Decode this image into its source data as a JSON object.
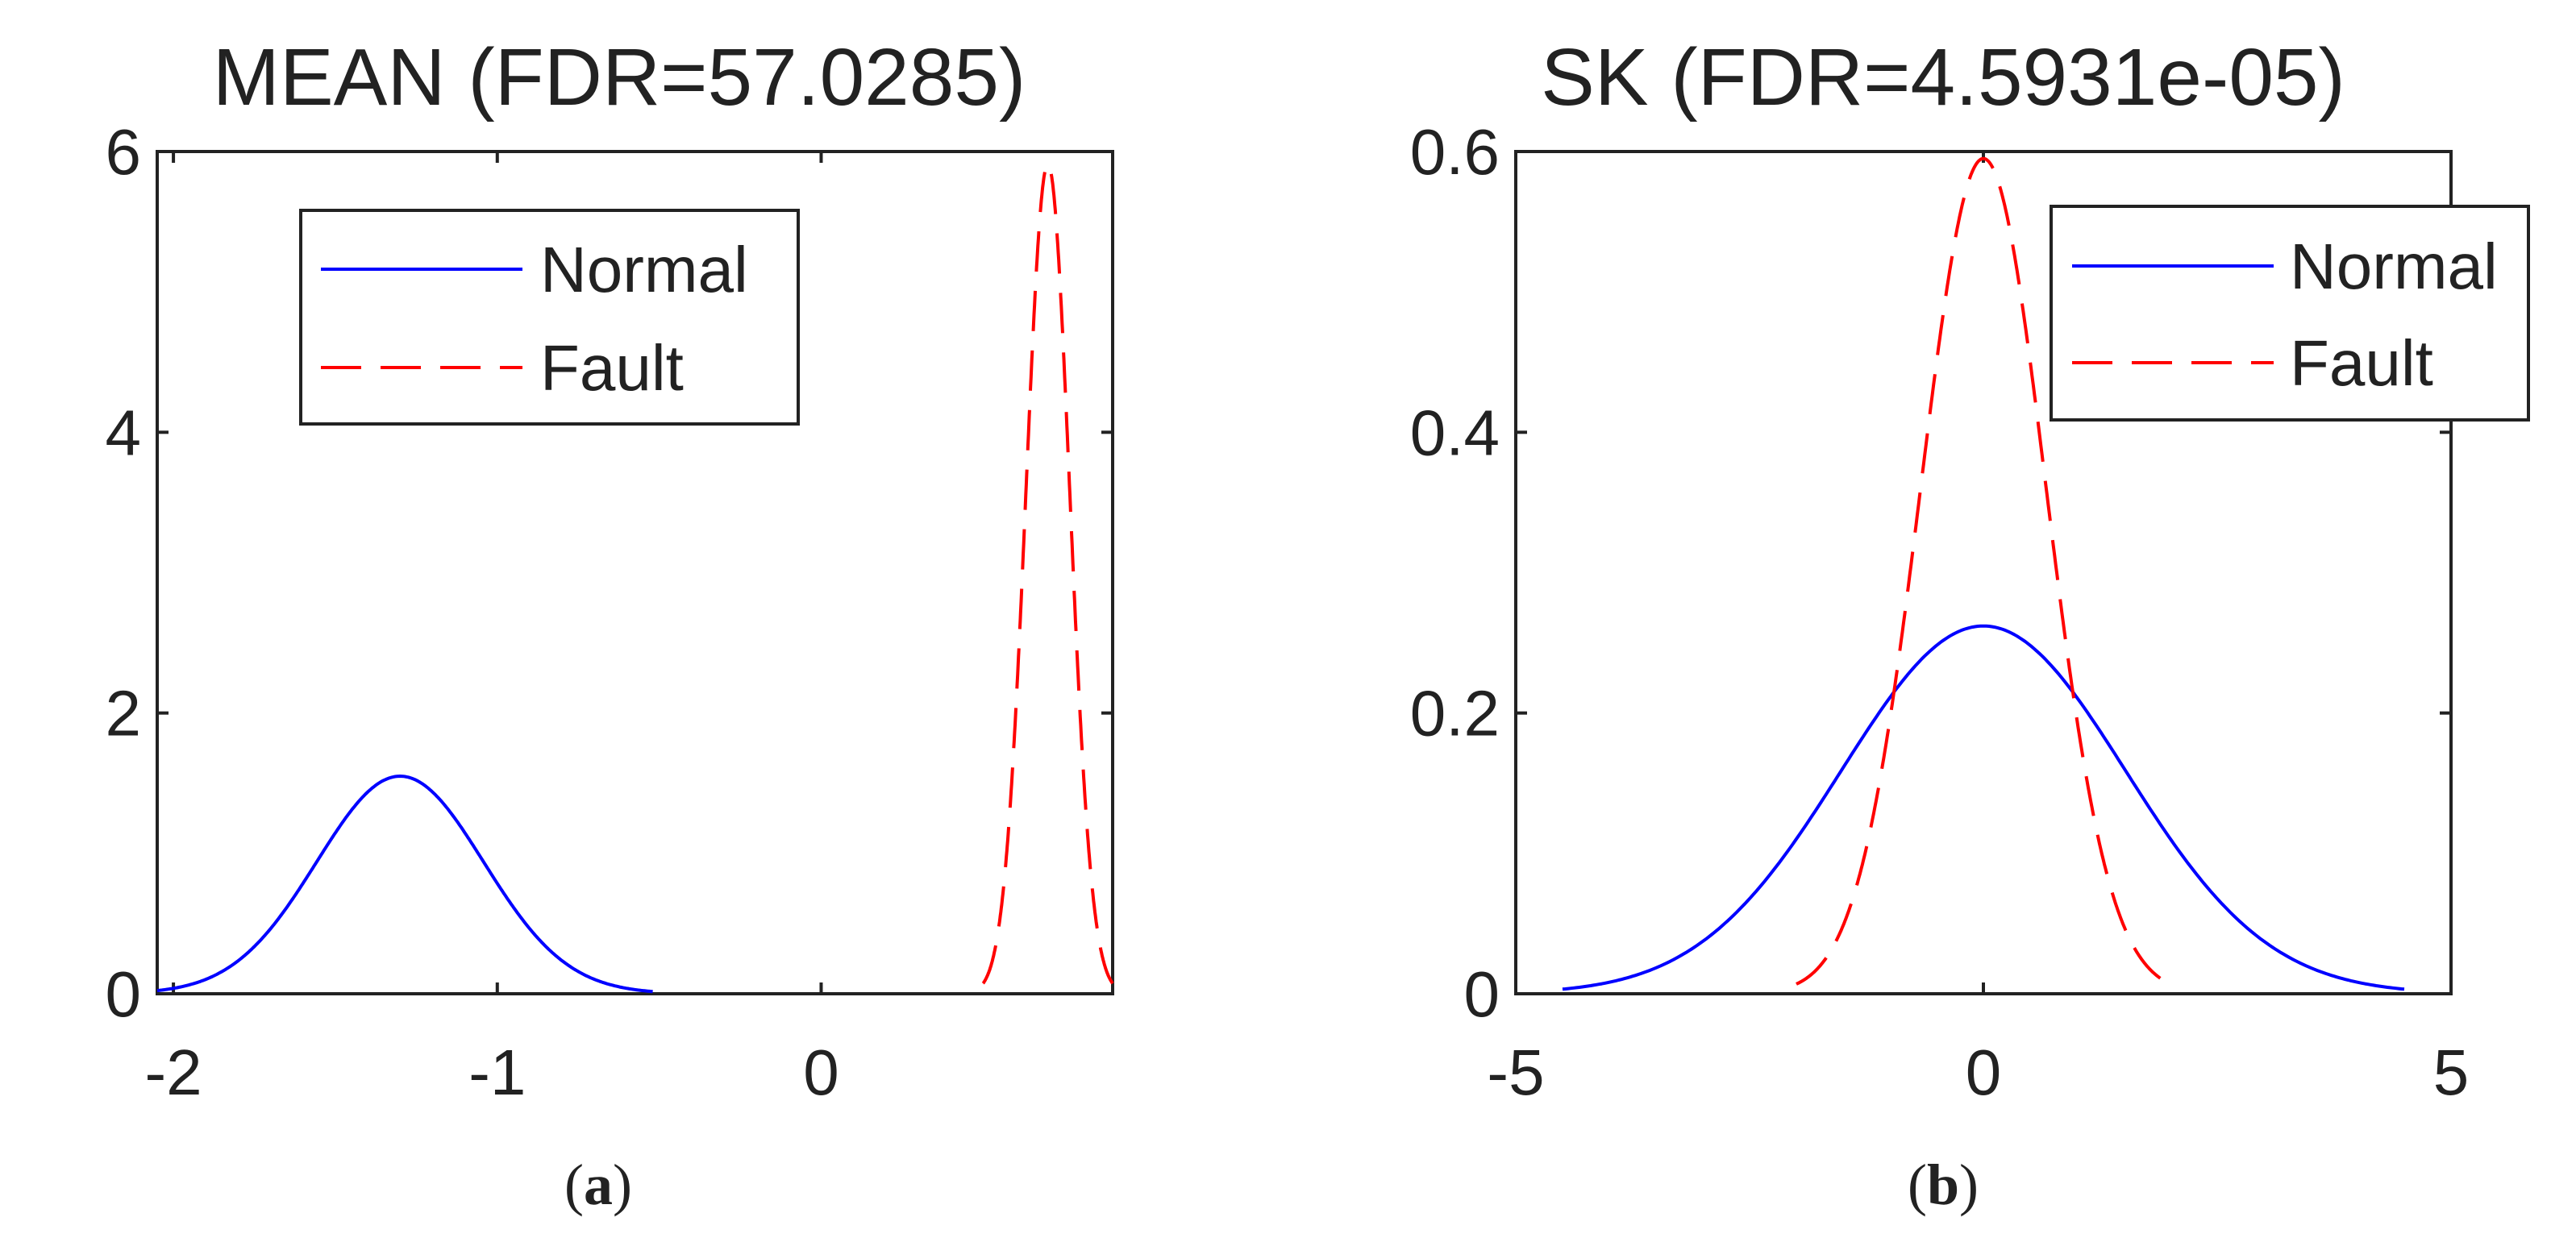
{
  "chart_data": [
    {
      "type": "line",
      "title": "MEAN (FDR=57.0285)",
      "caption": {
        "open": "(",
        "letter": "a",
        "close": ")"
      },
      "xlim": [
        -2.05,
        0.9
      ],
      "ylim": [
        0,
        6
      ],
      "xticks": [
        -2,
        -1,
        0
      ],
      "xtick_labels": [
        "-2",
        "-1",
        "0"
      ],
      "yticks": [
        0,
        2,
        4,
        6
      ],
      "ytick_labels": [
        "0",
        "2",
        "4",
        "6"
      ],
      "legend": {
        "position": "top-center",
        "entries": [
          "Normal",
          "Fault"
        ]
      },
      "series": [
        {
          "name": "Normal",
          "color": "#0000ff",
          "style": "solid",
          "distribution": "gaussian",
          "mu": -1.3,
          "sigma": 0.2575,
          "xrange": [
            -2.05,
            -0.52
          ],
          "peak": 1.55
        },
        {
          "name": "Fault",
          "color": "#ff0000",
          "style": "dashed",
          "distribution": "gaussian",
          "mu": 0.7,
          "sigma": 0.0675,
          "xrange": [
            0.5,
            0.9
          ],
          "peak": 5.91
        }
      ]
    },
    {
      "type": "line",
      "title": "SK (FDR=4.5931e-05)",
      "caption": {
        "open": "(",
        "letter": "b",
        "close": ")"
      },
      "xlim": [
        -5,
        5
      ],
      "ylim": [
        0,
        0.6
      ],
      "xticks": [
        -5,
        0,
        5
      ],
      "xtick_labels": [
        "-5",
        "0",
        "5"
      ],
      "yticks": [
        0,
        0.2,
        0.4,
        0.6
      ],
      "ytick_labels": [
        "0",
        "0.2",
        "0.4",
        "0.6"
      ],
      "legend": {
        "position": "top-right",
        "entries": [
          "Normal",
          "Fault"
        ]
      },
      "series": [
        {
          "name": "Normal",
          "color": "#0000ff",
          "style": "solid",
          "distribution": "gaussian",
          "mu": 0,
          "sigma": 1.52,
          "xrange": [
            -4.5,
            4.5
          ],
          "peak": 0.262
        },
        {
          "name": "Fault",
          "color": "#ff0000",
          "style": "dashed",
          "distribution": "gaussian",
          "mu": 0,
          "sigma": 0.67,
          "xrange": [
            -2.0,
            2.0
          ],
          "peak": 0.595
        }
      ]
    }
  ]
}
